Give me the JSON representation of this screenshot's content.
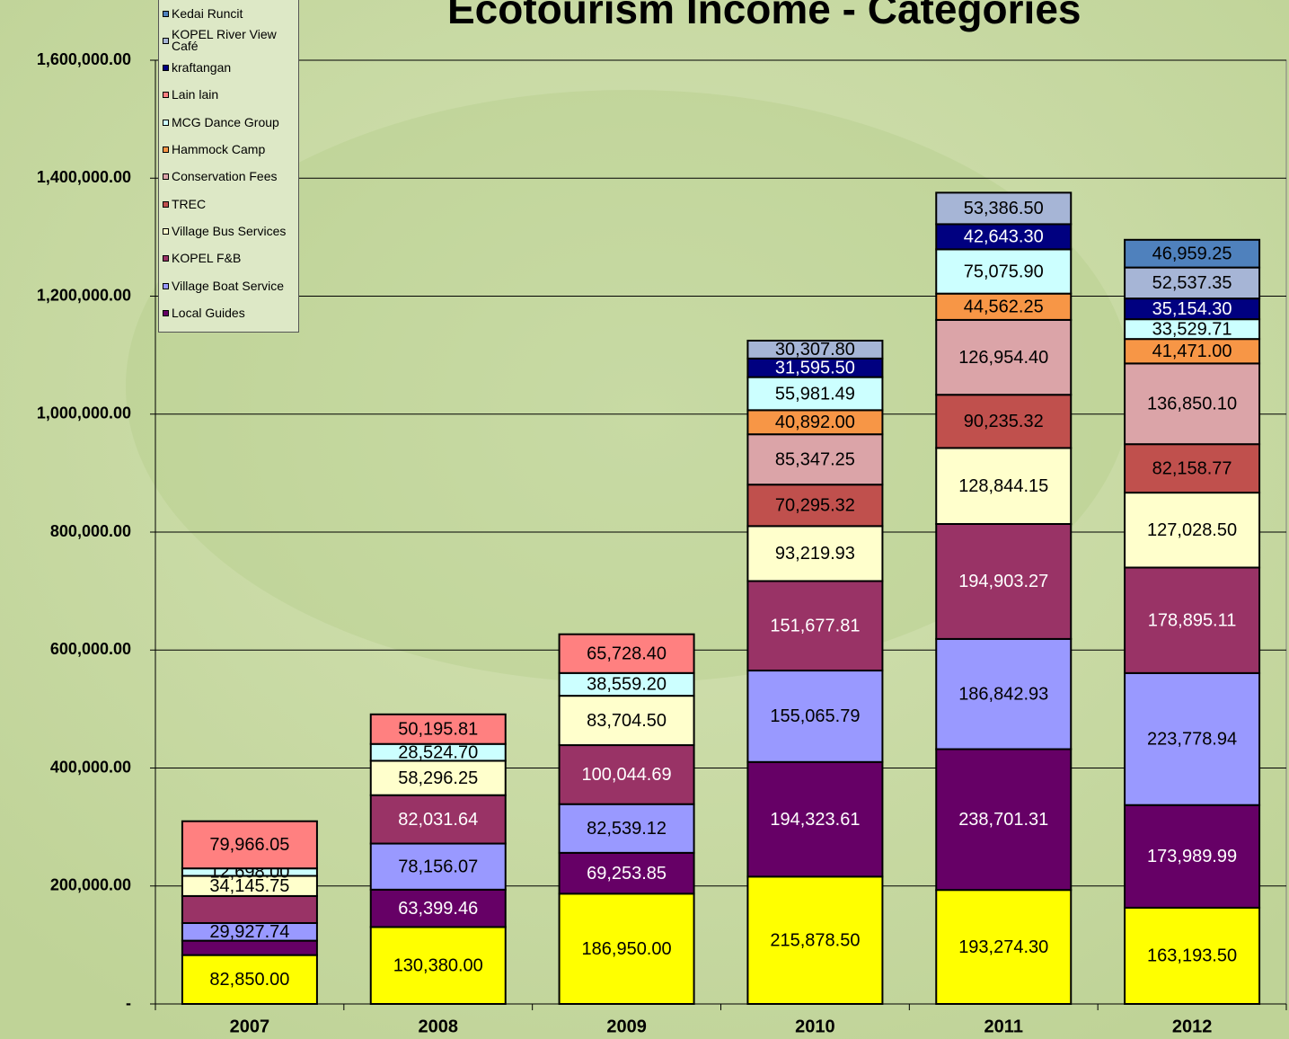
{
  "chart_data": {
    "type": "stacked_bar",
    "title": "Ecotourism Income - Categories",
    "categories": [
      "2007",
      "2008",
      "2009",
      "2010",
      "2011",
      "2012"
    ],
    "ylim": [
      0,
      1600000
    ],
    "yticks": [
      {
        "value": 0,
        "label": "-"
      },
      {
        "value": 200000,
        "label": "200,000.00"
      },
      {
        "value": 400000,
        "label": "400,000.00"
      },
      {
        "value": 600000,
        "label": "600,000.00"
      },
      {
        "value": 800000,
        "label": "800,000.00"
      },
      {
        "value": 1000000,
        "label": "1,000,000.00"
      },
      {
        "value": 1200000,
        "label": "1,200,000.00"
      },
      {
        "value": 1400000,
        "label": "1,400,000.00"
      },
      {
        "value": 1600000,
        "label": "1,600,000.00"
      }
    ],
    "grid": true,
    "legend": "top-left",
    "series": [
      {
        "name": null,
        "color": "#ffff00",
        "values": [
          82850.0,
          130380.0,
          186950.0,
          215878.5,
          193274.3,
          163193.5
        ],
        "value_labels": [
          "82,850.00",
          "130,380.00",
          "186,950.00",
          "215,878.50",
          "193,274.30",
          "163,193.50"
        ]
      },
      {
        "name": "Local Guides",
        "color": "#660066",
        "values": [
          24400,
          63399.46,
          69253.85,
          194323.61,
          238701.31,
          173989.99
        ],
        "value_labels": [
          null,
          "63,399.46",
          "69,253.85",
          "194,323.61",
          "238,701.31",
          "173,989.99"
        ]
      },
      {
        "name": "Village Boat Service",
        "color": "#9999ff",
        "values": [
          29927.74,
          78156.07,
          82539.12,
          155065.79,
          186842.93,
          223778.94
        ],
        "value_labels": [
          "29,927.74",
          "78,156.07",
          "82,539.12",
          "155,065.79",
          "186,842.93",
          "223,778.94"
        ]
      },
      {
        "name": "KOPEL F&B",
        "color": "#993366",
        "values": [
          45800,
          82031.64,
          100044.69,
          151677.81,
          194903.27,
          178895.11
        ],
        "value_labels": [
          null,
          "82,031.64",
          "100,044.69",
          "151,677.81",
          "194,903.27",
          "178,895.11"
        ]
      },
      {
        "name": "Village Bus Services",
        "color": "#ffffcc",
        "values": [
          34145.75,
          58296.25,
          83704.5,
          93219.93,
          128844.15,
          127028.5
        ],
        "value_labels": [
          "34,145.75",
          "58,296.25",
          "83,704.50",
          "93,219.93",
          "128,844.15",
          "127,028.50"
        ]
      },
      {
        "name": "TREC",
        "color": "#c0504d",
        "values": [
          null,
          null,
          null,
          70295.32,
          90235.32,
          82158.77
        ],
        "value_labels": [
          null,
          null,
          null,
          "70,295.32",
          "90,235.32",
          "82,158.77"
        ]
      },
      {
        "name": "Conservation Fees",
        "color": "#dba4a8",
        "values": [
          null,
          null,
          null,
          85347.25,
          126954.4,
          136850.1
        ],
        "value_labels": [
          null,
          null,
          null,
          "85,347.25",
          "126,954.40",
          "136,850.10"
        ]
      },
      {
        "name": "Hammock Camp",
        "color": "#f79646",
        "values": [
          null,
          null,
          null,
          40892.0,
          44562.25,
          41471.0
        ],
        "value_labels": [
          null,
          null,
          null,
          "40,892.00",
          "44,562.25",
          "41,471.00"
        ]
      },
      {
        "name": "MCG Dance Group",
        "color": "#ccffff",
        "values": [
          12698.0,
          28524.7,
          38559.2,
          55981.49,
          75075.9,
          33529.71
        ],
        "value_labels": [
          "12,698.00",
          "28,524.70",
          "38,559.20",
          "55,981.49",
          "75,075.90",
          "33,529.71"
        ]
      },
      {
        "name": "Lain lain",
        "color": "#ff8080",
        "values": [
          79966.05,
          50195.81,
          65728.4,
          null,
          null,
          null
        ],
        "value_labels": [
          "79,966.05",
          "50,195.81",
          "65,728.40",
          null,
          null,
          null
        ]
      },
      {
        "name": "kraftangan",
        "color": "#000080",
        "values": [
          null,
          null,
          null,
          31595.5,
          42643.3,
          35154.3
        ],
        "value_labels": [
          null,
          null,
          null,
          "31,595.50",
          "42,643.30",
          "35,154.30"
        ]
      },
      {
        "name": "KOPEL River View Café",
        "color": "#a6b5d6",
        "values": [
          null,
          null,
          null,
          30307.8,
          53386.5,
          52537.35
        ],
        "value_labels": [
          null,
          null,
          null,
          "30,307.80",
          "53,386.50",
          "52,537.35"
        ]
      },
      {
        "name": "Kedai Runcit",
        "color": "#4f81bd",
        "values": [
          null,
          null,
          null,
          null,
          null,
          46959.25
        ],
        "value_labels": [
          null,
          null,
          null,
          null,
          null,
          "46,959.25"
        ]
      }
    ]
  }
}
